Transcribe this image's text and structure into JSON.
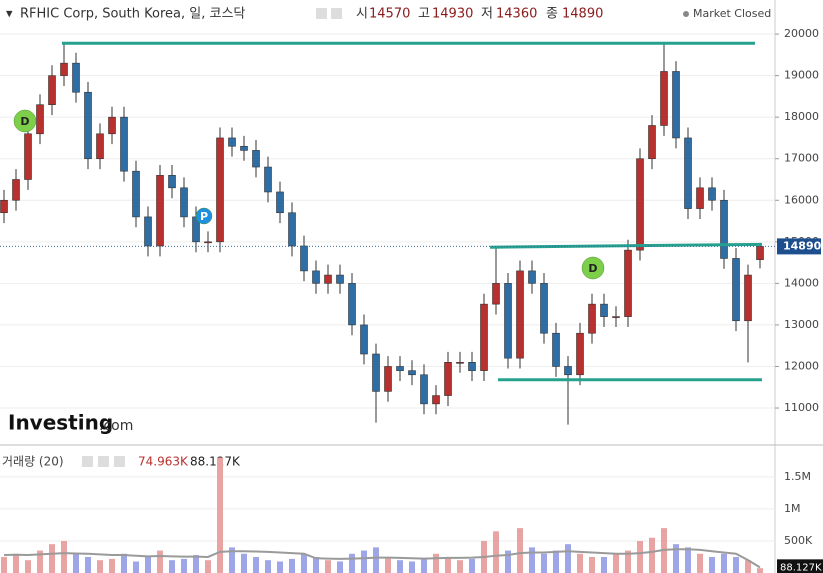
{
  "chart_data": {
    "type": "candlestick",
    "title": "RFHIC Corp, South Korea, 일, 코스닥",
    "ohlc_names": [
      "시",
      "고",
      "저",
      "종"
    ],
    "status": "Market Closed",
    "logo": "Investing",
    "logo_suffix": ".com",
    "annotations": [
      "D",
      "P",
      "D"
    ],
    "categories": [
      null,
      null,
      null,
      null,
      null,
      null,
      null,
      null,
      null,
      null,
      null,
      null,
      null,
      null,
      null,
      null,
      null,
      null,
      null,
      null,
      null,
      null,
      null,
      null,
      null,
      null,
      null,
      null,
      null,
      null,
      null,
      null,
      null,
      null,
      null,
      null,
      null,
      null,
      null,
      null,
      null,
      null,
      null,
      null,
      null,
      null,
      null,
      null,
      null,
      null,
      null,
      null,
      null,
      null,
      null,
      null,
      null,
      null,
      null,
      null,
      null,
      null,
      null,
      null
    ],
    "open": [
      15700,
      16000,
      16500,
      17600,
      18300,
      19000,
      19300,
      18600,
      17000,
      17600,
      18000,
      16700,
      15600,
      14900,
      16600,
      16300,
      15600,
      15000,
      15000,
      17500,
      17300,
      17200,
      16800,
      16200,
      15700,
      14900,
      14300,
      14000,
      14200,
      14000,
      13000,
      12300,
      11400,
      12000,
      11900,
      11800,
      11100,
      11300,
      12100,
      12100,
      11900,
      13500,
      14000,
      12200,
      14300,
      14000,
      12800,
      12000,
      11800,
      12800,
      13500,
      13200,
      13200,
      14800,
      17000,
      17800,
      19100,
      17500,
      15800,
      16300,
      16000,
      14600,
      13100,
      14570
    ],
    "high": [
      16250,
      16750,
      17850,
      18550,
      19250,
      19800,
      19550,
      18850,
      17850,
      18250,
      18250,
      16950,
      15850,
      16850,
      16850,
      16550,
      15850,
      15250,
      17750,
      17750,
      17550,
      17450,
      17050,
      16450,
      15950,
      15150,
      14550,
      14450,
      14450,
      14250,
      13250,
      12550,
      12250,
      12250,
      12150,
      12050,
      11550,
      12350,
      12350,
      12350,
      13750,
      14900,
      14250,
      14550,
      14550,
      14250,
      13050,
      12250,
      13050,
      13750,
      13750,
      13450,
      15050,
      17250,
      18050,
      19800,
      19350,
      17750,
      16550,
      16550,
      16250,
      14850,
      14450,
      14930
    ],
    "low": [
      15450,
      15750,
      16250,
      17350,
      18050,
      18750,
      18350,
      16750,
      16750,
      17350,
      16450,
      15350,
      14650,
      14650,
      16050,
      15350,
      14750,
      14750,
      14750,
      17050,
      16950,
      16550,
      15950,
      15450,
      14650,
      14050,
      13750,
      13750,
      13750,
      12750,
      12050,
      10650,
      11150,
      11650,
      11550,
      10850,
      10850,
      11050,
      11850,
      11650,
      11650,
      13250,
      11950,
      11950,
      13750,
      12550,
      11750,
      10600,
      11550,
      12550,
      12950,
      12950,
      12950,
      14550,
      16750,
      17550,
      17250,
      15550,
      15550,
      15750,
      14350,
      12850,
      12100,
      14360
    ],
    "close": [
      16000,
      16500,
      17600,
      18300,
      19000,
      19300,
      18600,
      17000,
      17600,
      18000,
      16700,
      15600,
      14900,
      16600,
      16300,
      15600,
      15000,
      15000,
      17500,
      17300,
      17200,
      16800,
      16200,
      15700,
      14900,
      14300,
      14000,
      14200,
      14000,
      13000,
      12300,
      11400,
      12000,
      11900,
      11800,
      11100,
      11300,
      12100,
      12100,
      11900,
      13500,
      14000,
      12200,
      14300,
      14000,
      12800,
      12000,
      11800,
      12800,
      13500,
      13200,
      13200,
      14800,
      17000,
      17800,
      19100,
      17500,
      15800,
      16300,
      16000,
      14600,
      13100,
      14200,
      14890
    ],
    "up_color": "#b8312f",
    "down_color": "#2f6ea5",
    "ylim": [
      10110,
      20820
    ],
    "yticks": [
      11000,
      12000,
      13000,
      14000,
      15000,
      16000,
      17000,
      18000,
      19000,
      20000
    ],
    "grid": true,
    "levels": [
      {
        "color": "#26a18e",
        "values": [
          19780,
          19780
        ]
      },
      {
        "color": "#26a18e",
        "values": [
          14870,
          14940
        ]
      },
      {
        "color": "#26a18e",
        "values": [
          11680,
          11680
        ]
      }
    ],
    "volume": {
      "name": "거래량 (20)",
      "volume_label": "74.963K",
      "ma_label": "88.127K",
      "values": [
        250000,
        300000,
        200000,
        350000,
        450000,
        500000,
        300000,
        250000,
        200000,
        220000,
        300000,
        180000,
        250000,
        350000,
        200000,
        220000,
        280000,
        200000,
        1800000,
        400000,
        300000,
        250000,
        200000,
        180000,
        220000,
        300000,
        250000,
        200000,
        180000,
        300000,
        350000,
        400000,
        250000,
        200000,
        180000,
        220000,
        300000,
        250000,
        200000,
        220000,
        500000,
        650000,
        350000,
        700000,
        400000,
        300000,
        350000,
        450000,
        300000,
        250000,
        250000,
        300000,
        350000,
        500000,
        550000,
        700000,
        450000,
        400000,
        300000,
        250000,
        300000,
        250000,
        200000,
        74963
      ],
      "ma": [
        280000,
        285000,
        280000,
        290000,
        300000,
        310000,
        305000,
        300000,
        290000,
        280000,
        280000,
        270000,
        260000,
        265000,
        260000,
        255000,
        255000,
        250000,
        330000,
        340000,
        340000,
        335000,
        330000,
        320000,
        310000,
        300000,
        230000,
        225000,
        220000,
        225000,
        230000,
        240000,
        240000,
        235000,
        230000,
        225000,
        230000,
        235000,
        235000,
        240000,
        250000,
        270000,
        280000,
        310000,
        320000,
        320000,
        330000,
        340000,
        330000,
        320000,
        310000,
        300000,
        300000,
        310000,
        330000,
        360000,
        370000,
        370000,
        360000,
        340000,
        320000,
        300000,
        200000,
        88127
      ],
      "ma_color": "#9a9a9a",
      "ylim": [
        0,
        1950000
      ],
      "yticks": [
        {
          "value": 500000,
          "label": "500K"
        },
        {
          "value": 1000000,
          "label": "1M"
        },
        {
          "value": 1500000,
          "label": "1.5M"
        }
      ]
    }
  }
}
